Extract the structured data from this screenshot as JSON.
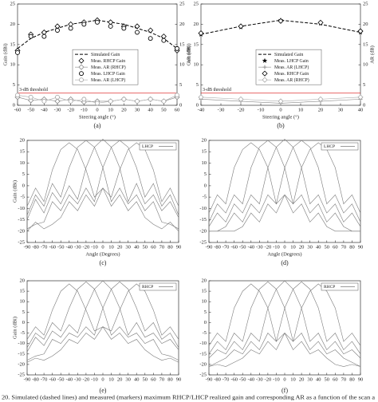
{
  "chart_data": [
    {
      "type": "line",
      "label": "(a)",
      "x_label": "Steering angle (°)",
      "y_label": "Gain (dBi)",
      "y2_label": "AR (dB)",
      "x": [
        -60,
        -50,
        -40,
        -30,
        -20,
        -10,
        0,
        10,
        20,
        30,
        40,
        50,
        60
      ],
      "xlim": [
        -60,
        60
      ],
      "xticks": [
        -60,
        -50,
        -40,
        -30,
        -20,
        -10,
        0,
        10,
        20,
        30,
        40,
        50,
        60
      ],
      "ylim": [
        0,
        25
      ],
      "yticks": [
        0,
        5,
        10,
        15,
        20,
        25
      ],
      "y2lim": [
        0,
        25
      ],
      "y2ticks": [
        0,
        5,
        10,
        15,
        20,
        25
      ],
      "grid": false,
      "legend": "center",
      "threshold": {
        "value": 3,
        "label": "3-dB threshold",
        "axis": "y2",
        "color": "#e03030"
      },
      "series": [
        {
          "name": "Simulated Gain",
          "color": "#000000",
          "line": "dashed",
          "marker": "none",
          "values": [
            14,
            16.5,
            18,
            19,
            20,
            20.5,
            21,
            20.5,
            20,
            19,
            18,
            16.5,
            14
          ]
        },
        {
          "name": "Meas. RHCP Gain",
          "color": "#000000",
          "line": "none",
          "marker": "diamond",
          "values": [
            13.5,
            17.5,
            18,
            19.5,
            20,
            20.5,
            21,
            20.5,
            19.5,
            19.5,
            18.5,
            17,
            13.5
          ]
        },
        {
          "name": "Meas. AR (RHCP)",
          "color": "#888888",
          "line": "solid",
          "marker": "diamond",
          "axis": "y2",
          "values": [
            2,
            1.2,
            1.5,
            1,
            1.5,
            0.8,
            1,
            1,
            1.5,
            1,
            1.5,
            1,
            2
          ]
        },
        {
          "name": "Meas. LHCP Gain",
          "color": "#000000",
          "line": "none",
          "marker": "circle",
          "values": [
            13,
            17,
            17,
            18.5,
            19,
            20,
            20.5,
            19.5,
            19,
            18,
            16.5,
            16,
            14
          ]
        },
        {
          "name": "Meas. AR (LHCP)",
          "color": "#aaaaaa",
          "line": "solid",
          "marker": "circle",
          "axis": "y2",
          "values": [
            2.5,
            2,
            1,
            2,
            1,
            1.5,
            0.5,
            1,
            1.5,
            1,
            1.5,
            1,
            2.5
          ]
        }
      ]
    },
    {
      "type": "line",
      "label": "(b)",
      "x_label": "Steering angle (°)",
      "y_label": "Gain (dBi)",
      "y2_label": "AR (dB)",
      "x": [
        -40,
        -20,
        0,
        20,
        40
      ],
      "xlim": [
        -40,
        40
      ],
      "xticks": [
        -40,
        -30,
        -20,
        -10,
        0,
        10,
        20,
        30,
        40
      ],
      "ylim": [
        0,
        25
      ],
      "yticks": [
        0,
        5,
        10,
        15,
        20,
        25
      ],
      "y2lim": [
        0,
        25
      ],
      "y2ticks": [
        0,
        5,
        10,
        15,
        20,
        25
      ],
      "grid": false,
      "legend": "center",
      "threshold": {
        "value": 3,
        "label": "3-dB threshold",
        "axis": "y2",
        "color": "#e03030"
      },
      "series": [
        {
          "name": "Simulated Gain",
          "color": "#000000",
          "line": "dashed",
          "marker": "none",
          "values": [
            17.5,
            19.5,
            21,
            20,
            18
          ]
        },
        {
          "name": "Meas. LHCP Gain",
          "color": "#000000",
          "line": "none",
          "marker": "star",
          "values": [
            17.5,
            19.3,
            21,
            20.2,
            18
          ]
        },
        {
          "name": "Meas. AR (LHCP)",
          "color": "#888888",
          "line": "solid",
          "marker": "plus",
          "axis": "y2",
          "values": [
            1.5,
            1,
            0.5,
            1,
            1.5
          ]
        },
        {
          "name": "Meas. RHCP Gain",
          "color": "#000000",
          "line": "none",
          "marker": "diamond",
          "values": [
            17.8,
            19.5,
            20.8,
            20.4,
            18.3
          ]
        },
        {
          "name": "Meas. AR (RHCP)",
          "color": "#aaaaaa",
          "line": "solid",
          "marker": "diamond",
          "axis": "y2",
          "values": [
            2,
            1.5,
            1,
            1.5,
            2
          ]
        }
      ]
    },
    {
      "type": "line",
      "label": "(c)",
      "x_label": "Angle (Degrees)",
      "y_label": "Gain (dBi)",
      "legend_label": "LHCP",
      "x": [
        -90,
        -80,
        -70,
        -60,
        -50,
        -40,
        -30,
        -20,
        -10,
        0,
        10,
        20,
        30,
        40,
        50,
        60,
        70,
        80,
        90
      ],
      "xlim": [
        -90,
        90
      ],
      "xticks": [
        -90,
        -80,
        -70,
        -60,
        -50,
        -40,
        -30,
        -20,
        -10,
        0,
        10,
        20,
        30,
        40,
        50,
        60,
        70,
        80,
        90
      ],
      "ylim": [
        -25,
        20
      ],
      "yticks": [
        -25,
        -20,
        -15,
        -10,
        -5,
        0,
        5,
        10,
        15,
        20
      ],
      "grid": false,
      "legend": "upper-right",
      "series": [
        {
          "color": "#7a7a7a",
          "line": "solid",
          "marker": "none",
          "values": [
            -9,
            -1,
            -7,
            7,
            16,
            19,
            16,
            7,
            -5,
            -1,
            -9,
            -4,
            -11,
            -7,
            -14,
            -17,
            -19,
            -16,
            -20
          ]
        },
        {
          "color": "#7a7a7a",
          "line": "solid",
          "marker": "none",
          "values": [
            -13,
            -4,
            -9,
            1,
            -5,
            8,
            17,
            20,
            17,
            8,
            -7,
            -1,
            -8,
            -4,
            -11,
            -7,
            -16,
            -17,
            -19
          ]
        },
        {
          "color": "#7a7a7a",
          "line": "solid",
          "marker": "none",
          "values": [
            -15,
            -6,
            -12,
            -3,
            -8,
            0,
            -6,
            8,
            17,
            20.5,
            17,
            8,
            -7,
            1,
            -8,
            -4,
            -11,
            -7,
            -14
          ]
        },
        {
          "color": "#7a7a7a",
          "line": "solid",
          "marker": "none",
          "values": [
            -19,
            -17,
            -16,
            -7,
            -11,
            -4,
            -8,
            -1,
            -7,
            8,
            17,
            20,
            17,
            8,
            -5,
            1,
            -9,
            -4,
            -13
          ]
        },
        {
          "color": "#7a7a7a",
          "line": "solid",
          "marker": "none",
          "values": [
            -20,
            -16,
            -19,
            -17,
            -14,
            -7,
            -11,
            -4,
            -9,
            -1,
            -5,
            7,
            16,
            19,
            16,
            7,
            -7,
            -1,
            -9
          ]
        }
      ]
    },
    {
      "type": "line",
      "label": "(d)",
      "x_label": "Angle (Degrees)",
      "legend_label": "LHCP",
      "x": [
        -90,
        -80,
        -70,
        -60,
        -50,
        -40,
        -30,
        -20,
        -10,
        0,
        10,
        20,
        30,
        40,
        50,
        60,
        70,
        80,
        90
      ],
      "xlim": [
        -90,
        90
      ],
      "xticks": [
        -90,
        -80,
        -70,
        -60,
        -50,
        -40,
        -30,
        -20,
        -10,
        0,
        10,
        20,
        30,
        40,
        50,
        60,
        70,
        80,
        90
      ],
      "ylim": [
        -25,
        20
      ],
      "yticks": [
        -25,
        -20,
        -15,
        -10,
        -5,
        0,
        5,
        10,
        15,
        20
      ],
      "grid": false,
      "legend": "upper-right",
      "series": [
        {
          "color": "#7a7a7a",
          "line": "solid",
          "marker": "none",
          "values": [
            -12,
            -4,
            -8,
            8,
            16,
            19,
            16,
            8,
            -8,
            -4,
            -12,
            -8,
            -16,
            -12,
            -18,
            -20,
            -20,
            -20,
            -20
          ]
        },
        {
          "color": "#7a7a7a",
          "line": "solid",
          "marker": "none",
          "values": [
            -16,
            -8,
            -12,
            -4,
            -8,
            8,
            17,
            20,
            17,
            8,
            -8,
            -4,
            -12,
            -8,
            -16,
            -12,
            -18,
            -20,
            -20
          ]
        },
        {
          "color": "#7a7a7a",
          "line": "solid",
          "marker": "none",
          "values": [
            -18,
            -12,
            -16,
            -8,
            -12,
            -4,
            -8,
            8,
            17,
            20.5,
            17,
            8,
            -8,
            -4,
            -12,
            -8,
            -16,
            -12,
            -18
          ]
        },
        {
          "color": "#7a7a7a",
          "line": "solid",
          "marker": "none",
          "values": [
            -20,
            -20,
            -18,
            -12,
            -16,
            -8,
            -12,
            -4,
            -8,
            8,
            17,
            20,
            17,
            8,
            -8,
            -4,
            -12,
            -8,
            -16
          ]
        },
        {
          "color": "#7a7a7a",
          "line": "solid",
          "marker": "none",
          "values": [
            -20,
            -20,
            -20,
            -20,
            -18,
            -12,
            -16,
            -8,
            -12,
            -4,
            -8,
            8,
            16,
            19,
            16,
            8,
            -8,
            -4,
            -12
          ]
        }
      ]
    },
    {
      "type": "line",
      "label": "(e)",
      "y_label": "Gain (dBi)",
      "legend_label": "RHCP",
      "x": [
        -90,
        -80,
        -70,
        -60,
        -50,
        -40,
        -30,
        -20,
        -10,
        0,
        10,
        20,
        30,
        40,
        50,
        60,
        70,
        80,
        90
      ],
      "xlim": [
        -90,
        90
      ],
      "xticks": [
        -90,
        -80,
        -70,
        -60,
        -50,
        -40,
        -30,
        -20,
        -10,
        0,
        10,
        20,
        30,
        40,
        50,
        60,
        70,
        80,
        90
      ],
      "ylim": [
        -25,
        20
      ],
      "yticks": [
        -25,
        -20,
        -15,
        -10,
        -5,
        0,
        5,
        10,
        15,
        20
      ],
      "grid": false,
      "legend": "upper-right",
      "series": [
        {
          "color": "#7a7a7a",
          "line": "solid",
          "marker": "none",
          "values": [
            -8,
            -2,
            -6,
            6,
            15,
            18.5,
            15,
            6,
            -4,
            -2,
            -8,
            -5,
            -10,
            -8,
            -13,
            -16,
            -18,
            -17,
            -19
          ]
        },
        {
          "color": "#7a7a7a",
          "line": "solid",
          "marker": "none",
          "values": [
            -12,
            -5,
            -8,
            0,
            -4,
            7,
            16,
            19.5,
            16,
            7,
            -6,
            -2,
            -7,
            -5,
            -10,
            -8,
            -15,
            -16,
            -18
          ]
        },
        {
          "color": "#7a7a7a",
          "line": "solid",
          "marker": "none",
          "values": [
            -14,
            -7,
            -11,
            -4,
            -7,
            -1,
            -5,
            7,
            16,
            20,
            16,
            7,
            -6,
            0,
            -7,
            -5,
            -10,
            -8,
            -13
          ]
        },
        {
          "color": "#7a7a7a",
          "line": "solid",
          "marker": "none",
          "values": [
            -18,
            -16,
            -15,
            -8,
            -10,
            -5,
            -7,
            -2,
            -6,
            7,
            16,
            19.5,
            16,
            7,
            -4,
            0,
            -8,
            -5,
            -12
          ]
        },
        {
          "color": "#7a7a7a",
          "line": "solid",
          "marker": "none",
          "values": [
            -19,
            -17,
            -18,
            -16,
            -13,
            -8,
            -10,
            -5,
            -8,
            -2,
            -4,
            6,
            15,
            18.5,
            15,
            6,
            -6,
            -2,
            -8
          ]
        }
      ]
    },
    {
      "type": "line",
      "label": "(f)",
      "legend_label": "RHCP",
      "x": [
        -90,
        -80,
        -70,
        -60,
        -50,
        -40,
        -30,
        -20,
        -10,
        0,
        10,
        20,
        30,
        40,
        50,
        60,
        70,
        80,
        90
      ],
      "xlim": [
        -90,
        90
      ],
      "xticks": [
        -90,
        -80,
        -70,
        -60,
        -50,
        -40,
        -30,
        -20,
        -10,
        0,
        10,
        20,
        30,
        40,
        50,
        60,
        70,
        80,
        90
      ],
      "ylim": [
        -25,
        20
      ],
      "yticks": [
        -25,
        -20,
        -15,
        -10,
        -5,
        0,
        5,
        10,
        15,
        20
      ],
      "grid": false,
      "legend": "upper-right",
      "series": [
        {
          "color": "#7a7a7a",
          "line": "solid",
          "marker": "none",
          "values": [
            -11,
            -5,
            -9,
            7,
            15,
            18.5,
            15,
            7,
            -9,
            -5,
            -13,
            -9,
            -15,
            -13,
            -17,
            -20,
            -21,
            -20,
            -21
          ]
        },
        {
          "color": "#7a7a7a",
          "line": "solid",
          "marker": "none",
          "values": [
            -15,
            -9,
            -13,
            -5,
            -9,
            7,
            16,
            19.5,
            16,
            7,
            -9,
            -5,
            -13,
            -9,
            -15,
            -13,
            -17,
            -19,
            -21
          ]
        },
        {
          "color": "#7a7a7a",
          "line": "solid",
          "marker": "none",
          "values": [
            -17,
            -13,
            -15,
            -9,
            -13,
            -5,
            -9,
            7,
            16,
            20,
            16,
            7,
            -9,
            -5,
            -13,
            -9,
            -15,
            -13,
            -17
          ]
        },
        {
          "color": "#7a7a7a",
          "line": "solid",
          "marker": "none",
          "values": [
            -21,
            -19,
            -17,
            -13,
            -15,
            -9,
            -13,
            -5,
            -9,
            7,
            16,
            19.5,
            16,
            7,
            -9,
            -5,
            -13,
            -9,
            -15
          ]
        },
        {
          "color": "#7a7a7a",
          "line": "solid",
          "marker": "none",
          "values": [
            -21,
            -20,
            -21,
            -19,
            -17,
            -13,
            -15,
            -9,
            -13,
            -5,
            -9,
            7,
            15,
            18.5,
            15,
            7,
            -9,
            -5,
            -11
          ]
        }
      ]
    }
  ],
  "caption": "20.  Simulated (dashed lines) and measured (markers) maximum RHCP/LHCP realized gain and corresponding AR as a function of the scan a"
}
